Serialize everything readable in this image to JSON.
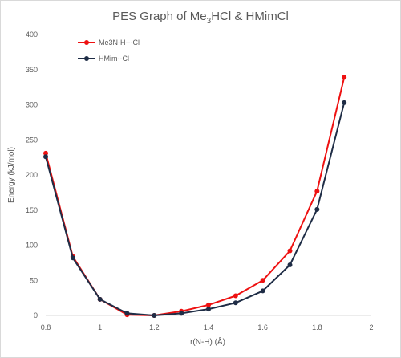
{
  "chart_data": {
    "type": "line",
    "title": {
      "pre": "PES Graph of Me",
      "sub": "3",
      "post": "HCl & HMimCl"
    },
    "xlabel": "r(N-H) (Å)",
    "ylabel": "Energy (kJ/mol)",
    "xlim": [
      0.8,
      2.0
    ],
    "ylim": [
      0,
      400
    ],
    "xticks": [
      "0.8",
      "1",
      "1.2",
      "1.4",
      "1.6",
      "1.8",
      "2"
    ],
    "yticks": [
      "0",
      "50",
      "100",
      "150",
      "200",
      "250",
      "300",
      "350",
      "400"
    ],
    "grid": false,
    "legend": "top-left",
    "x": [
      0.8,
      0.9,
      1.0,
      1.1,
      1.2,
      1.3,
      1.4,
      1.5,
      1.6,
      1.7,
      1.8,
      1.9
    ],
    "series": [
      {
        "name": "Me3N-H---Cl",
        "color": "#ee1111",
        "values": [
          231,
          84,
          23,
          1,
          0,
          6,
          15,
          28,
          50,
          92,
          177,
          339
        ]
      },
      {
        "name": "HMim--Cl",
        "color": "#1f2d46",
        "values": [
          226,
          82,
          23,
          3,
          0,
          3,
          9,
          18,
          35,
          72,
          151,
          303
        ]
      }
    ]
  }
}
